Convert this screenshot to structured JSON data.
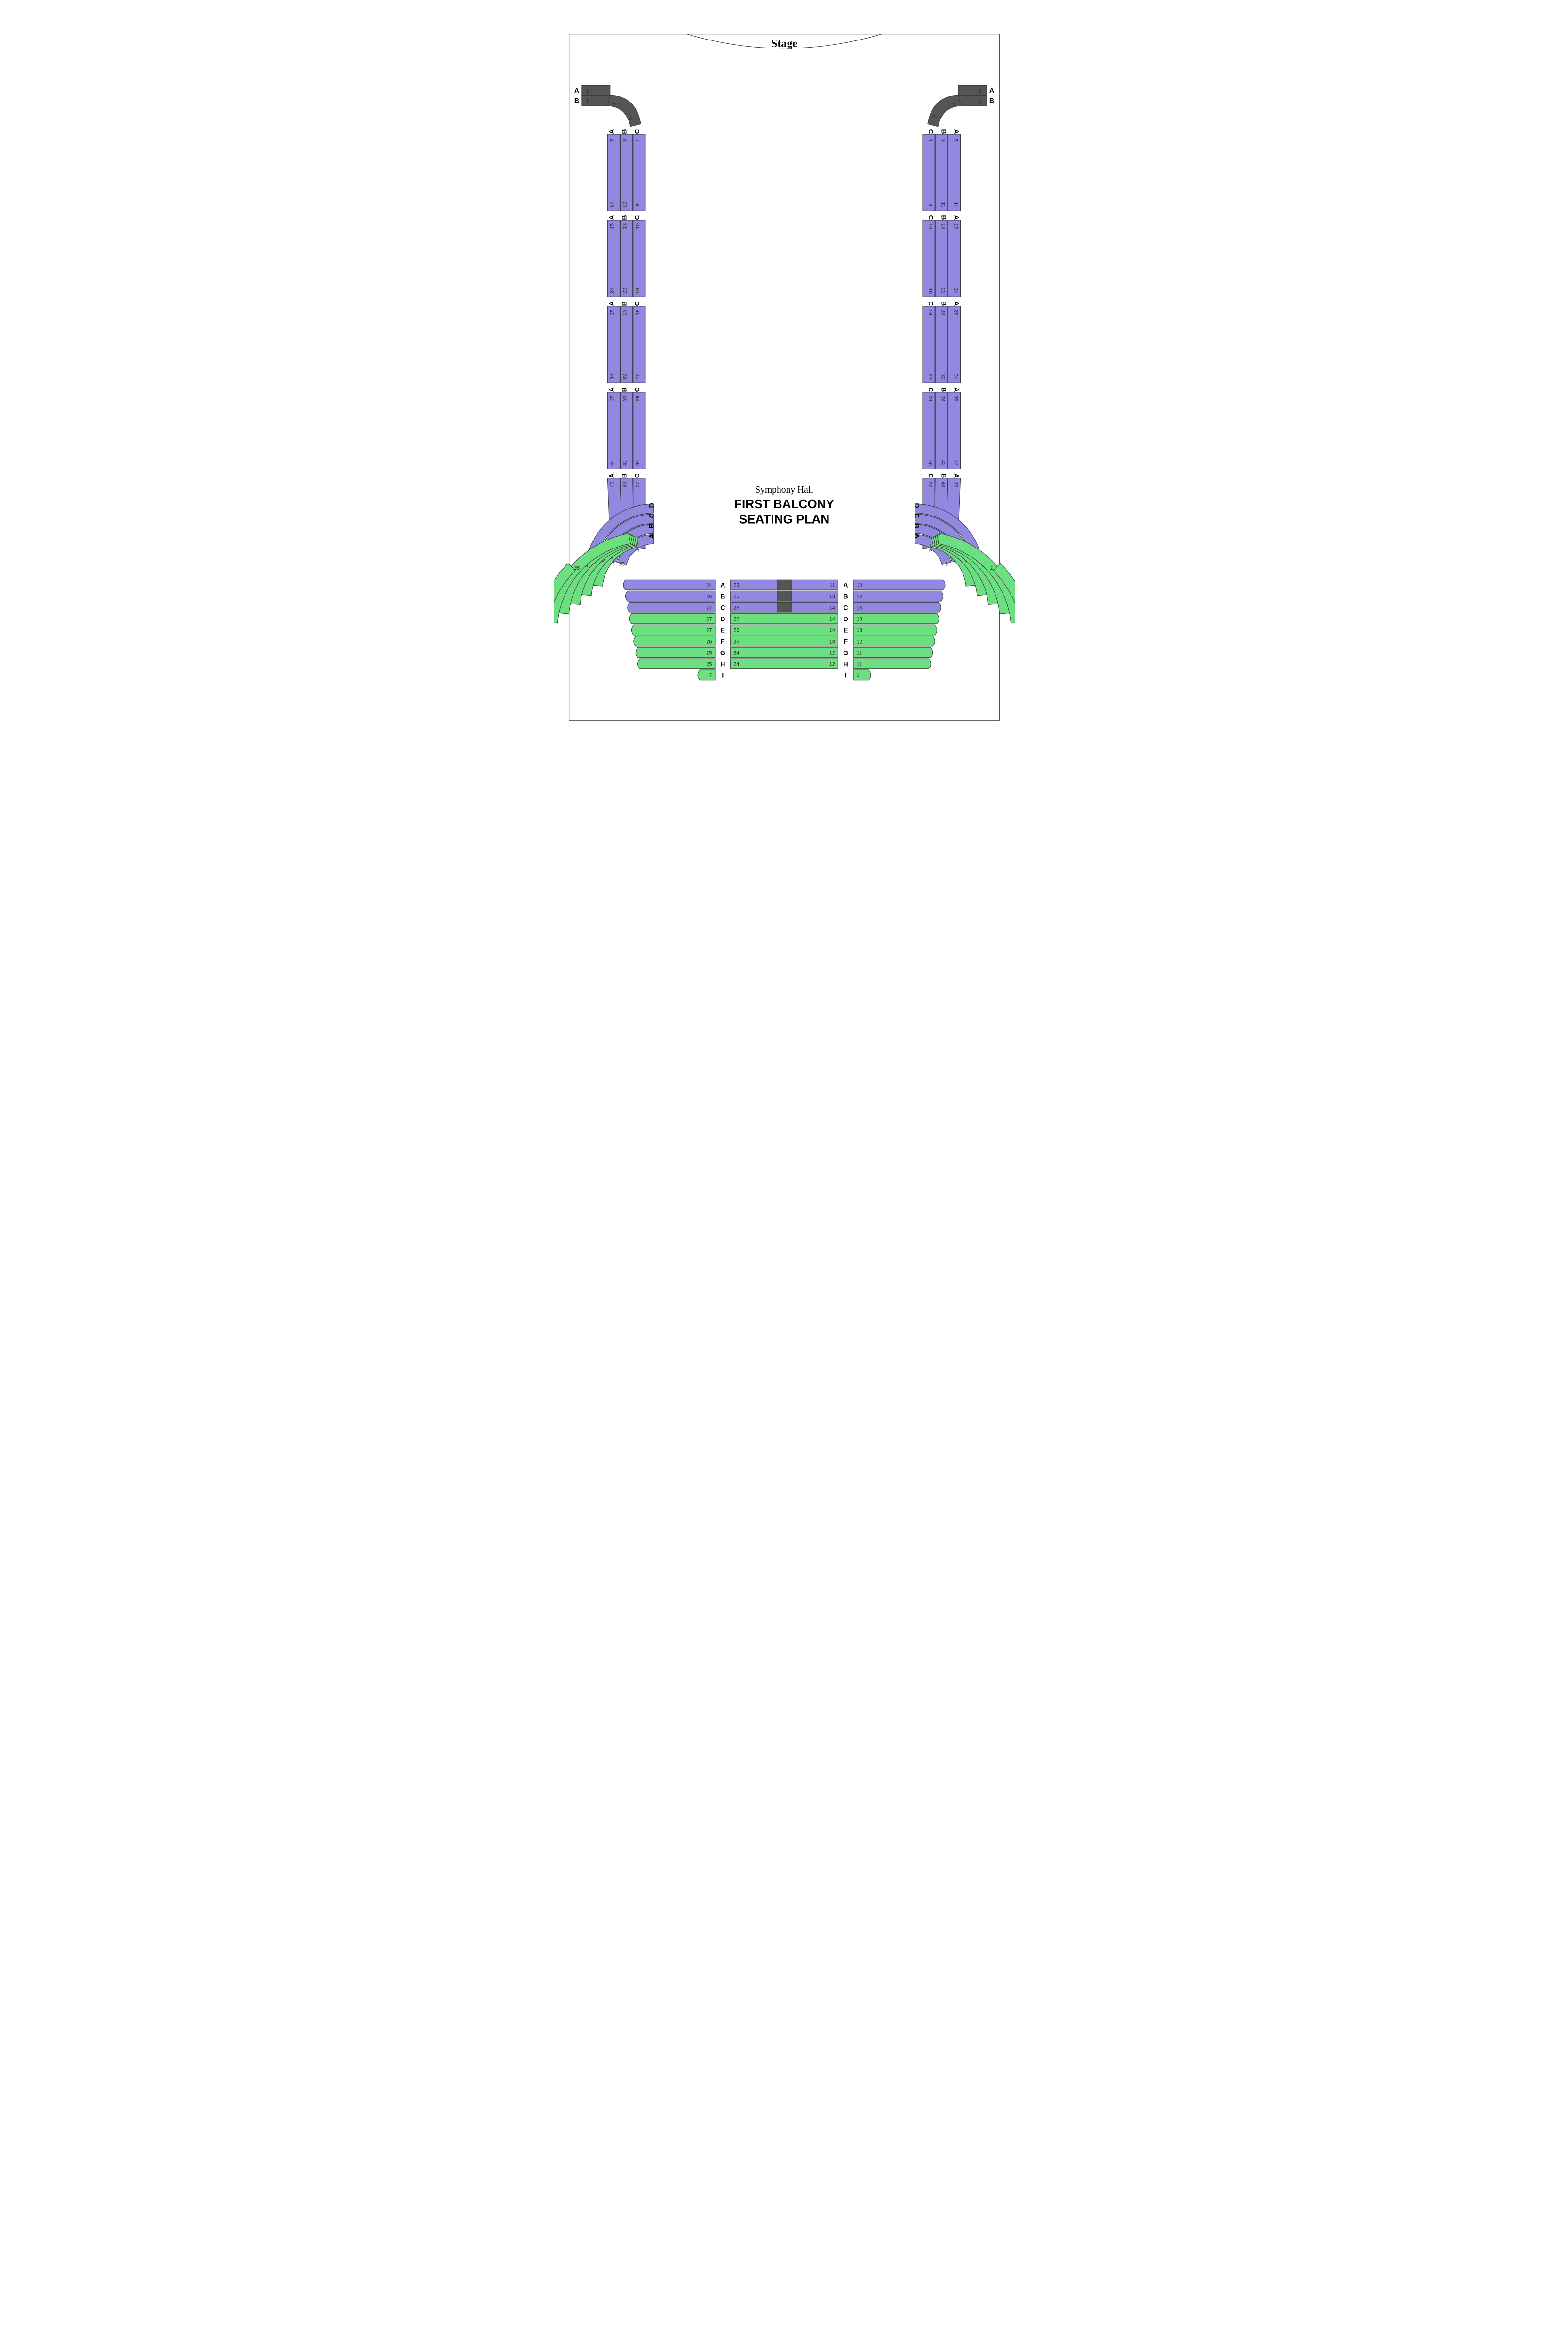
{
  "stage_label": "Stage",
  "hall_name": "Symphony Hall",
  "title_line1": "FIRST BALCONY",
  "title_line2": "SEATING PLAN",
  "colors": {
    "purple": "#9189e0",
    "green": "#6ce080",
    "dark": "#555555",
    "booth": "#555555",
    "stroke": "#3a3a3a",
    "bg": "#ffffff",
    "text": "#1a1a1a"
  },
  "top_boxes": {
    "left": {
      "rows": [
        "A",
        "B"
      ],
      "A_seats": [
        1
      ],
      "B_seats": [
        1,
        2,
        4
      ]
    },
    "right": {
      "rows": [
        "A",
        "B"
      ],
      "A_seats": [
        1
      ],
      "B_seats": [
        4,
        2,
        1
      ]
    }
  },
  "side_columns": {
    "rows": [
      "A",
      "B",
      "C"
    ],
    "blocks": [
      {
        "A": [
          5,
          14
        ],
        "B": [
          3,
          12
        ],
        "C": [
          1,
          9
        ]
      },
      {
        "A": [
          15,
          24
        ],
        "B": [
          13,
          22
        ],
        "C": [
          10,
          18
        ]
      },
      {
        "A": [
          25,
          34
        ],
        "B": [
          23,
          32
        ],
        "C": [
          19,
          27
        ]
      },
      {
        "A": [
          35,
          44
        ],
        "B": [
          33,
          42
        ],
        "C": [
          28,
          36
        ]
      },
      {
        "A": [
          45,
          52
        ],
        "B": [
          43,
          50
        ],
        "C": [
          37,
          44
        ]
      }
    ]
  },
  "corner": {
    "rows": [
      "A",
      "B",
      "C",
      "D"
    ],
    "left": {
      "A": [
        53
      ],
      "B": [
        51
      ],
      "C": [
        45
      ],
      "D": [
        1
      ]
    },
    "right": {
      "A": [
        1
      ],
      "B": [
        1
      ],
      "C": [
        1
      ],
      "D": [
        1
      ]
    }
  },
  "rear_center": {
    "rows": [
      "A",
      "B",
      "C",
      "D",
      "E",
      "F",
      "G",
      "H",
      "I"
    ],
    "purple_rows": [
      "A",
      "B",
      "C"
    ],
    "green_rows": [
      "D",
      "E",
      "F",
      "G",
      "H",
      "I"
    ],
    "booth_rows": [
      "A",
      "B",
      "C"
    ],
    "left_block": {
      "A": [
        24
      ],
      "B": [
        26
      ],
      "C": [
        27
      ],
      "D": [
        27
      ],
      "E": [
        27
      ],
      "F": [
        26
      ],
      "G": [
        25
      ],
      "H": [
        25
      ],
      "I": [
        7
      ]
    },
    "center_block": {
      "A": [
        23,
        11
      ],
      "B": [
        25,
        13
      ],
      "C": [
        26,
        14
      ],
      "D": [
        26,
        14
      ],
      "E": [
        26,
        14
      ],
      "F": [
        25,
        13
      ],
      "G": [
        24,
        12
      ],
      "H": [
        24,
        12
      ]
    },
    "right_block": {
      "A": [
        10
      ],
      "B": [
        12
      ],
      "C": [
        13
      ],
      "D": [
        13
      ],
      "E": [
        13
      ],
      "F": [
        12
      ],
      "G": [
        11
      ],
      "H": [
        11
      ],
      "I": [
        6
      ]
    }
  },
  "rear_wings": {
    "layers_left": [
      [
        "D",
        "green",
        "39"
      ],
      [
        "E",
        "green",
        "39"
      ],
      [
        "F",
        "green",
        "37"
      ],
      [
        "G",
        "green",
        "35"
      ],
      [
        "H",
        "green",
        "35"
      ],
      [
        "I",
        "green",
        "12"
      ]
    ],
    "layers_right": [
      [
        "D",
        "green",
        "1"
      ],
      [
        "E",
        "green",
        "1"
      ],
      [
        "F",
        "green",
        "1"
      ],
      [
        "G",
        "green",
        "1"
      ],
      [
        "H",
        "green",
        "1"
      ],
      [
        "I",
        "green",
        "1"
      ]
    ]
  }
}
